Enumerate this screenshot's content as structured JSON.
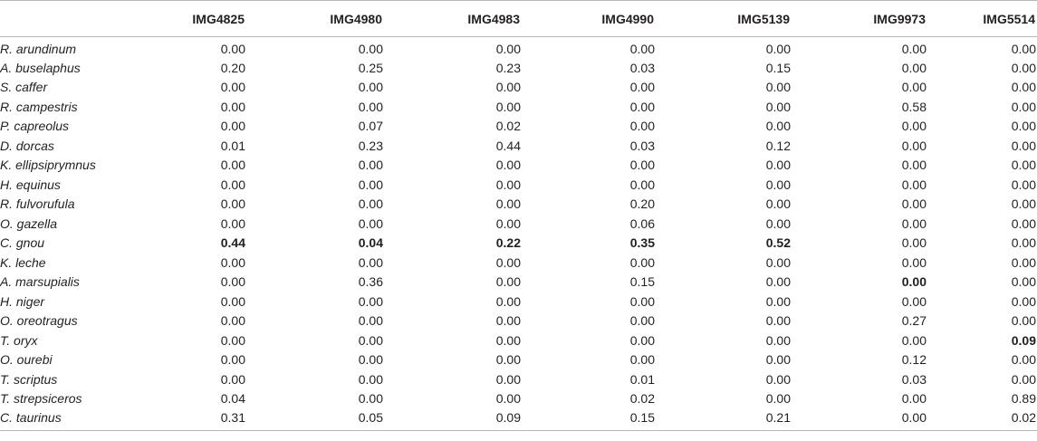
{
  "table": {
    "headers": [
      "",
      "IMG4825",
      "IMG4980",
      "IMG4983",
      "IMG4990",
      "IMG5139",
      "IMG9973",
      "IMG5514"
    ],
    "rows": [
      {
        "species": "R. arundinum",
        "values": [
          "0.00",
          "0.00",
          "0.00",
          "0.00",
          "0.00",
          "0.00",
          "0.00"
        ],
        "bold": []
      },
      {
        "species": "A. buselaphus",
        "values": [
          "0.20",
          "0.25",
          "0.23",
          "0.03",
          "0.15",
          "0.00",
          "0.00"
        ],
        "bold": []
      },
      {
        "species": "S. caffer",
        "values": [
          "0.00",
          "0.00",
          "0.00",
          "0.00",
          "0.00",
          "0.00",
          "0.00"
        ],
        "bold": []
      },
      {
        "species": "R. campestris",
        "values": [
          "0.00",
          "0.00",
          "0.00",
          "0.00",
          "0.00",
          "0.58",
          "0.00"
        ],
        "bold": []
      },
      {
        "species": "P. capreolus",
        "values": [
          "0.00",
          "0.07",
          "0.02",
          "0.00",
          "0.00",
          "0.00",
          "0.00"
        ],
        "bold": []
      },
      {
        "species": "D. dorcas",
        "values": [
          "0.01",
          "0.23",
          "0.44",
          "0.03",
          "0.12",
          "0.00",
          "0.00"
        ],
        "bold": []
      },
      {
        "species": "K. ellipsiprymnus",
        "values": [
          "0.00",
          "0.00",
          "0.00",
          "0.00",
          "0.00",
          "0.00",
          "0.00"
        ],
        "bold": []
      },
      {
        "species": "H. equinus",
        "values": [
          "0.00",
          "0.00",
          "0.00",
          "0.00",
          "0.00",
          "0.00",
          "0.00"
        ],
        "bold": []
      },
      {
        "species": "R. fulvorufula",
        "values": [
          "0.00",
          "0.00",
          "0.00",
          "0.20",
          "0.00",
          "0.00",
          "0.00"
        ],
        "bold": []
      },
      {
        "species": "O. gazella",
        "values": [
          "0.00",
          "0.00",
          "0.00",
          "0.06",
          "0.00",
          "0.00",
          "0.00"
        ],
        "bold": []
      },
      {
        "species": "C. gnou",
        "values": [
          "0.44",
          "0.04",
          "0.22",
          "0.35",
          "0.52",
          "0.00",
          "0.00"
        ],
        "bold": [
          0,
          1,
          2,
          3,
          4
        ]
      },
      {
        "species": "K. leche",
        "values": [
          "0.00",
          "0.00",
          "0.00",
          "0.00",
          "0.00",
          "0.00",
          "0.00"
        ],
        "bold": []
      },
      {
        "species": "A. marsupialis",
        "values": [
          "0.00",
          "0.36",
          "0.00",
          "0.15",
          "0.00",
          "0.00",
          "0.00"
        ],
        "bold": [
          5
        ]
      },
      {
        "species": "H. niger",
        "values": [
          "0.00",
          "0.00",
          "0.00",
          "0.00",
          "0.00",
          "0.00",
          "0.00"
        ],
        "bold": []
      },
      {
        "species": "O. oreotragus",
        "values": [
          "0.00",
          "0.00",
          "0.00",
          "0.00",
          "0.00",
          "0.27",
          "0.00"
        ],
        "bold": []
      },
      {
        "species": "T. oryx",
        "values": [
          "0.00",
          "0.00",
          "0.00",
          "0.00",
          "0.00",
          "0.00",
          "0.09"
        ],
        "bold": [
          6
        ]
      },
      {
        "species": "O. ourebi",
        "values": [
          "0.00",
          "0.00",
          "0.00",
          "0.00",
          "0.00",
          "0.12",
          "0.00"
        ],
        "bold": []
      },
      {
        "species": "T. scriptus",
        "values": [
          "0.00",
          "0.00",
          "0.00",
          "0.01",
          "0.00",
          "0.03",
          "0.00"
        ],
        "bold": []
      },
      {
        "species": "T. strepsiceros",
        "values": [
          "0.04",
          "0.00",
          "0.00",
          "0.02",
          "0.00",
          "0.00",
          "0.89"
        ],
        "bold": []
      },
      {
        "species": "C. taurinus",
        "values": [
          "0.31",
          "0.05",
          "0.09",
          "0.15",
          "0.21",
          "0.00",
          "0.02"
        ],
        "bold": []
      }
    ]
  }
}
